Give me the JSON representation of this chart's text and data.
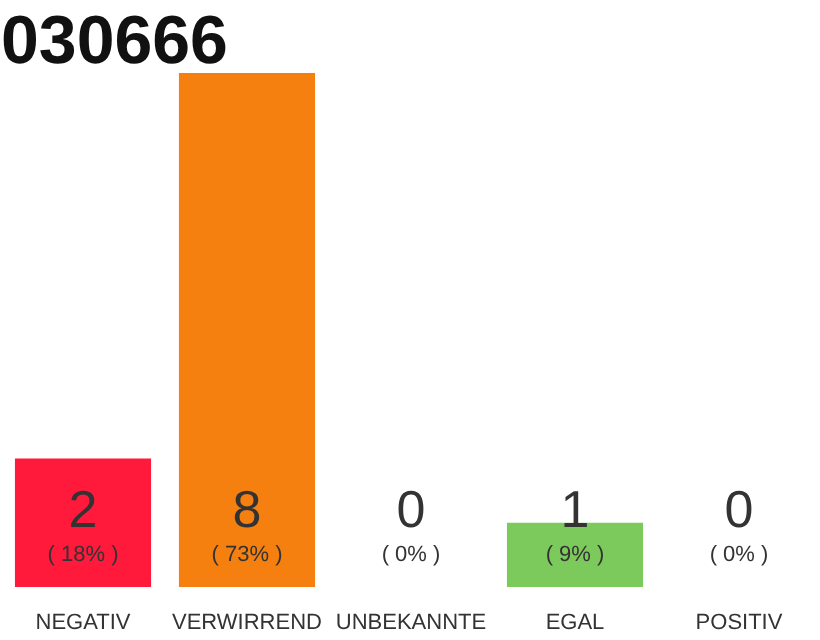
{
  "chart_data": {
    "type": "bar",
    "title": "030666",
    "categories": [
      "NEGATIV",
      "VERWIRREND",
      "UNBEKANNTE",
      "EGAL",
      "POSITIV"
    ],
    "values": [
      2,
      8,
      0,
      1,
      0
    ],
    "colors": [
      "#ff1a3c",
      "#f57f0f",
      "#e6e6e6",
      "#7dca5c",
      "#e6e6e6"
    ],
    "ylim": [
      0,
      8
    ],
    "data_labels": true,
    "annotations": [
      "( 18% )",
      "( 73% )",
      "( 0% )",
      "( 9% )",
      "( 0% )"
    ]
  }
}
